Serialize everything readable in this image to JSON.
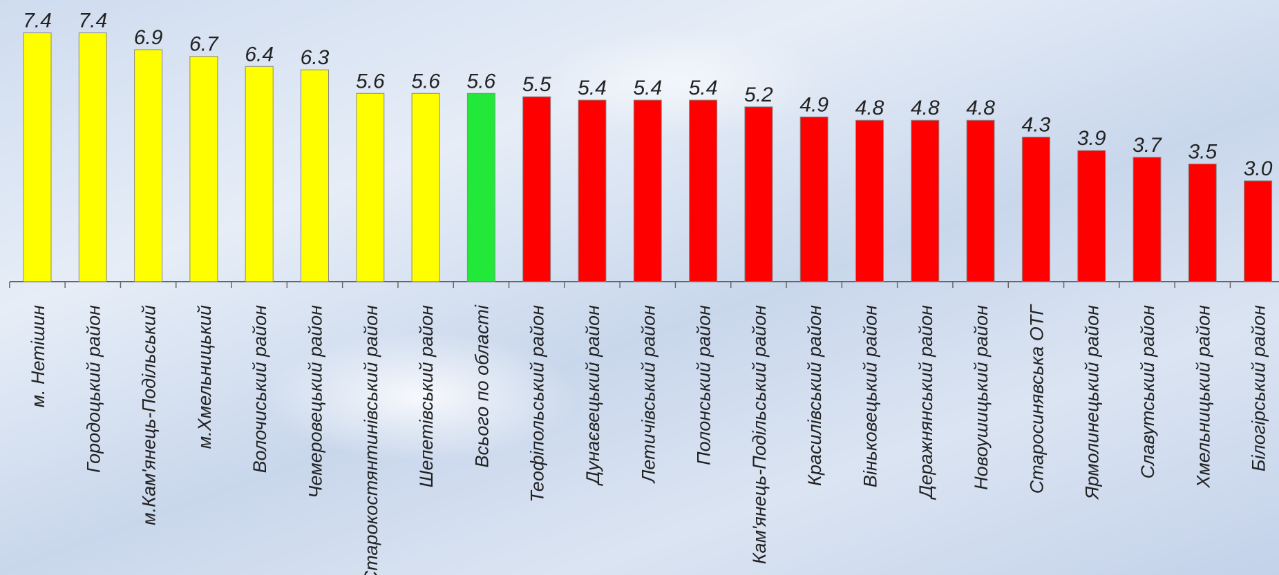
{
  "chart_data": {
    "type": "bar",
    "title": "",
    "xlabel": "",
    "ylabel": "",
    "ylim": [
      0,
      8
    ],
    "grid": false,
    "legend": "none",
    "categories": [
      "м. Нетішин",
      "Городоцький район",
      "м.Кам'янець-Подільський",
      "м.Хмельницький",
      "Волочиський район",
      "Чемеровецький район",
      "Старокостянтинівський район",
      "Шепетівський район",
      "Всього по області",
      "Теофіпольський район",
      "Дунаєвецький район",
      "Летичівський район",
      "Полонський район",
      "Кам'янець-Подільський район",
      "Красилівський район",
      "Віньковецький район",
      "Деражнянський район",
      "Новоушицький район",
      "Старосинявська ОТГ",
      "Ярмолинецький район",
      "Славутський район",
      "Хмельницький район",
      "Білогірський район"
    ],
    "values": [
      7.4,
      7.4,
      6.9,
      6.7,
      6.4,
      6.3,
      5.6,
      5.6,
      5.6,
      5.5,
      5.4,
      5.4,
      5.4,
      5.2,
      4.9,
      4.8,
      4.8,
      4.8,
      4.3,
      3.9,
      3.7,
      3.5,
      3.0
    ],
    "value_labels": [
      "7.4",
      "7.4",
      "6.9",
      "6.7",
      "6.4",
      "6.3",
      "5.6",
      "5.6",
      "5.6",
      "5.5",
      "5.4",
      "5.4",
      "5.4",
      "5.2",
      "4.9",
      "4.8",
      "4.8",
      "4.8",
      "4.3",
      "3.9",
      "3.7",
      "3.5",
      "3.0"
    ],
    "bar_colors": [
      "#ffff00",
      "#ffff00",
      "#ffff00",
      "#ffff00",
      "#ffff00",
      "#ffff00",
      "#ffff00",
      "#ffff00",
      "#22e83a",
      "#ff0000",
      "#ff0000",
      "#ff0000",
      "#ff0000",
      "#ff0000",
      "#ff0000",
      "#ff0000",
      "#ff0000",
      "#ff0000",
      "#ff0000",
      "#ff0000",
      "#ff0000",
      "#ff0000",
      "#ff0000"
    ]
  }
}
